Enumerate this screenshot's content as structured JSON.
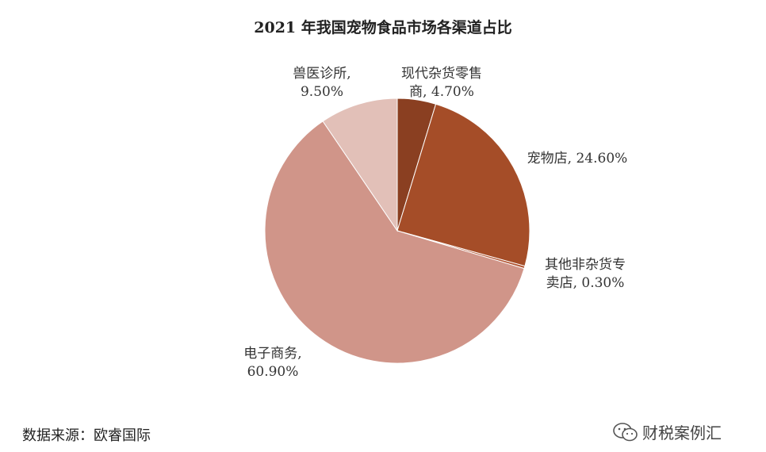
{
  "chart_data": {
    "type": "pie",
    "title": "2021 年我国宠物食品市场各渠道占比",
    "slices": [
      {
        "label": "现代杂货零售商",
        "value": 4.7,
        "display": "现代杂货零售\n商, 4.70%",
        "color": "#8a3f21"
      },
      {
        "label": "宠物店",
        "value": 24.6,
        "display": "宠物店, 24.60%",
        "color": "#a54d28"
      },
      {
        "label": "其他非杂货专卖店",
        "value": 0.3,
        "display": "其他非杂货专\n卖店, 0.30%",
        "color": "#b25533"
      },
      {
        "label": "电子商务",
        "value": 60.9,
        "display": "电子商务,\n60.90%",
        "color": "#d09589"
      },
      {
        "label": "兽医诊所",
        "value": 9.5,
        "display": "兽医诊所,\n9.50%",
        "color": "#e2c0b8"
      }
    ]
  },
  "source": "数据来源：欧睿国际",
  "watermark": {
    "text": "财税案例汇",
    "icon": "wechat-icon"
  }
}
